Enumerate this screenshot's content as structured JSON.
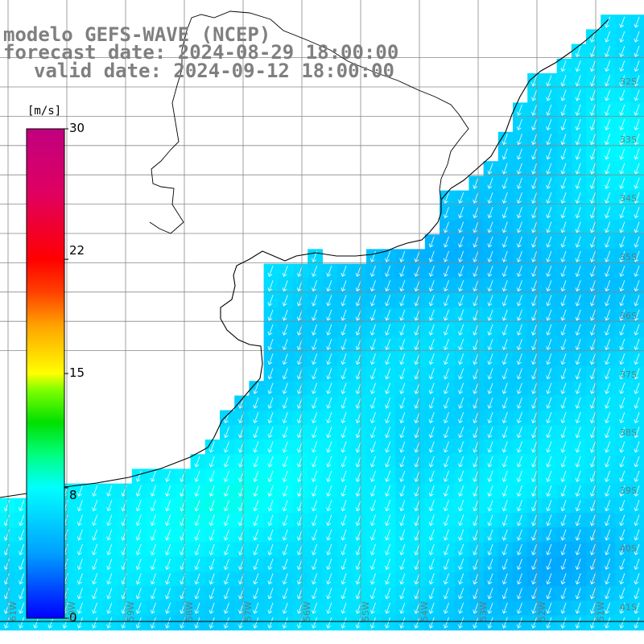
{
  "titles": {
    "line1": "modelo GEFS-WAVE (NCEP)",
    "line2": "forecast date: 2024-08-29 18:00:00",
    "line3": "valid date: 2024-09-12 18:00:00"
  },
  "colorbar": {
    "units": "[m/s]",
    "min": 0,
    "max": 30,
    "tick_labels": [
      "30",
      "22",
      "15",
      "8",
      "0"
    ],
    "tick_values": [
      30,
      22,
      15,
      8,
      0
    ],
    "colors": [
      "#0000ff",
      "#00a0ff",
      "#00ffff",
      "#00ff80",
      "#00e000",
      "#80ff00",
      "#ffff00",
      "#ffa000",
      "#ff4000",
      "#ff0000",
      "#e00060",
      "#c00080"
    ],
    "color_stops": [
      0,
      4,
      8,
      10,
      12,
      14,
      15,
      18,
      20,
      22,
      26,
      30
    ]
  },
  "map": {
    "field": "wind speed",
    "wind_direction_deg_to": 250,
    "grid_color": "#888888",
    "lat_labels": [
      "32S",
      "33S",
      "34S",
      "35S",
      "36S",
      "37S",
      "38S",
      "39S",
      "40S",
      "41S"
    ],
    "lon_labels": [
      "61W",
      "60W",
      "59W",
      "58W",
      "57W",
      "56W",
      "55W",
      "54W",
      "53W",
      "52W",
      "51W"
    ]
  }
}
